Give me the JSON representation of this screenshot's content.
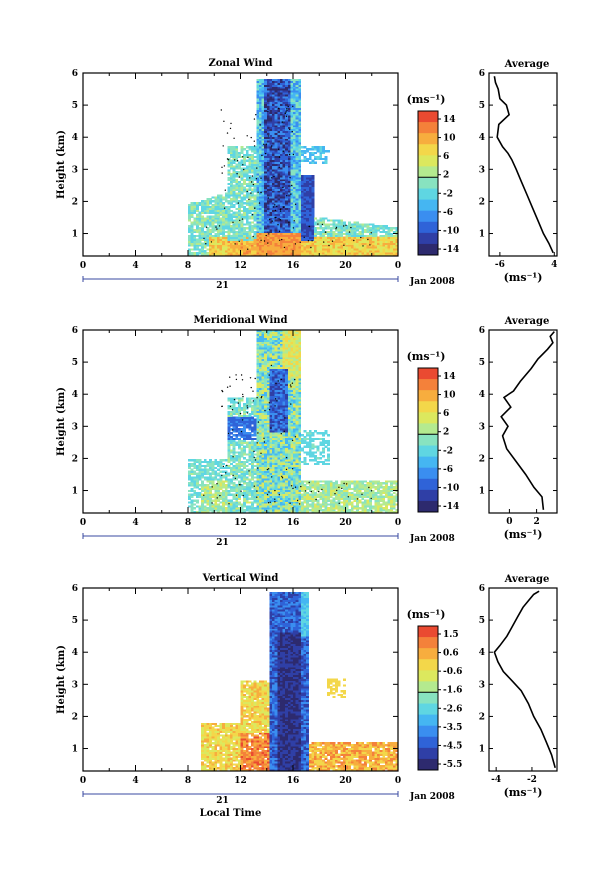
{
  "colors": {
    "scale": [
      "#2d2a6e",
      "#2f3fa6",
      "#2f63d8",
      "#3a8ef0",
      "#45b6f2",
      "#5fd6e2",
      "#88e3c0",
      "#b4ea8f",
      "#dce85e",
      "#f3d74a",
      "#f7ad3e",
      "#f4813a",
      "#ea4a31"
    ],
    "contour": "#000000"
  },
  "shared": {
    "xlabel": "Local Time",
    "xticks": [
      "0",
      "4",
      "8",
      "12",
      "16",
      "20",
      "0"
    ],
    "date_day": "21",
    "date_month": "Jan 2008",
    "ylabel": "Height (km)",
    "yticks": [
      "1",
      "2",
      "3",
      "4",
      "5",
      "6"
    ],
    "cb_unit": "(ms⁻¹)",
    "profile_unit": "(ms⁻¹)"
  },
  "chart_data": [
    {
      "type": "heatmap",
      "title": "Zonal Wind",
      "xlabel": "",
      "ylabel": "Height (km)",
      "xlim": [
        0,
        24
      ],
      "ylim": [
        0.3,
        6
      ],
      "colorbar_ticks": [
        "14",
        "10",
        "6",
        "2",
        "-2",
        "-6",
        "-10",
        "-14"
      ],
      "colorbar_range": [
        -16,
        16
      ],
      "profile": {
        "title": "Average",
        "xticks": [
          "-6",
          "4"
        ],
        "xlim": [
          -8,
          4.5
        ],
        "x": [
          3.8,
          3.0,
          2.0,
          1.0,
          0.0,
          -1.0,
          -2.0,
          -3.0,
          -3.8,
          -4.5,
          -5.5,
          -6.5,
          -6.2,
          -4.3,
          -4.8,
          -6.0,
          -6.3,
          -6.8,
          -7.0
        ],
        "y": [
          0.4,
          0.7,
          1.0,
          1.4,
          1.8,
          2.2,
          2.6,
          3.0,
          3.3,
          3.5,
          3.7,
          4.0,
          4.4,
          4.7,
          5.0,
          5.2,
          5.5,
          5.7,
          5.9
        ]
      }
    },
    {
      "type": "heatmap",
      "title": "Meridional Wind",
      "xlabel": "",
      "ylabel": "Height (km)",
      "xlim": [
        0,
        24
      ],
      "ylim": [
        0.3,
        6
      ],
      "colorbar_ticks": [
        "14",
        "10",
        "6",
        "2",
        "-2",
        "-6",
        "-10",
        "-14"
      ],
      "colorbar_range": [
        -16,
        16
      ],
      "profile": {
        "title": "Average",
        "xticks": [
          "0",
          "2"
        ],
        "xlim": [
          -1.5,
          3.5
        ],
        "x": [
          2.5,
          2.4,
          1.8,
          1.2,
          0.5,
          -0.2,
          -0.5,
          -0.1,
          -0.6,
          0.1,
          -0.4,
          0.3,
          0.8,
          1.6,
          2.1,
          2.8,
          3.2,
          3.0,
          3.3
        ],
        "y": [
          0.4,
          0.8,
          1.1,
          1.5,
          1.9,
          2.3,
          2.7,
          3.0,
          3.3,
          3.6,
          3.9,
          4.1,
          4.4,
          4.8,
          5.1,
          5.4,
          5.6,
          5.8,
          5.95
        ]
      }
    },
    {
      "type": "heatmap",
      "title": "Vertical Wind",
      "xlabel": "Local Time",
      "ylabel": "Height (km)",
      "xlim": [
        0,
        24
      ],
      "ylim": [
        0.3,
        6
      ],
      "colorbar_ticks": [
        "1.5",
        "0.6",
        "-0.6",
        "-1.6",
        "-2.6",
        "-3.5",
        "-4.5",
        "-5.5"
      ],
      "colorbar_range": [
        -6,
        2
      ],
      "profile": {
        "title": "Average",
        "xticks": [
          "-4",
          "-2"
        ],
        "xlim": [
          -4.4,
          -0.6
        ],
        "x": [
          -0.7,
          -0.9,
          -1.2,
          -1.5,
          -1.9,
          -2.2,
          -2.6,
          -3.1,
          -3.6,
          -3.9,
          -4.1,
          -3.8,
          -3.4,
          -3.1,
          -2.8,
          -2.5,
          -2.2,
          -1.9,
          -1.6
        ],
        "y": [
          0.4,
          0.8,
          1.2,
          1.6,
          2.0,
          2.4,
          2.8,
          3.1,
          3.4,
          3.7,
          4.0,
          4.2,
          4.5,
          4.8,
          5.1,
          5.4,
          5.6,
          5.8,
          5.9
        ]
      }
    }
  ]
}
